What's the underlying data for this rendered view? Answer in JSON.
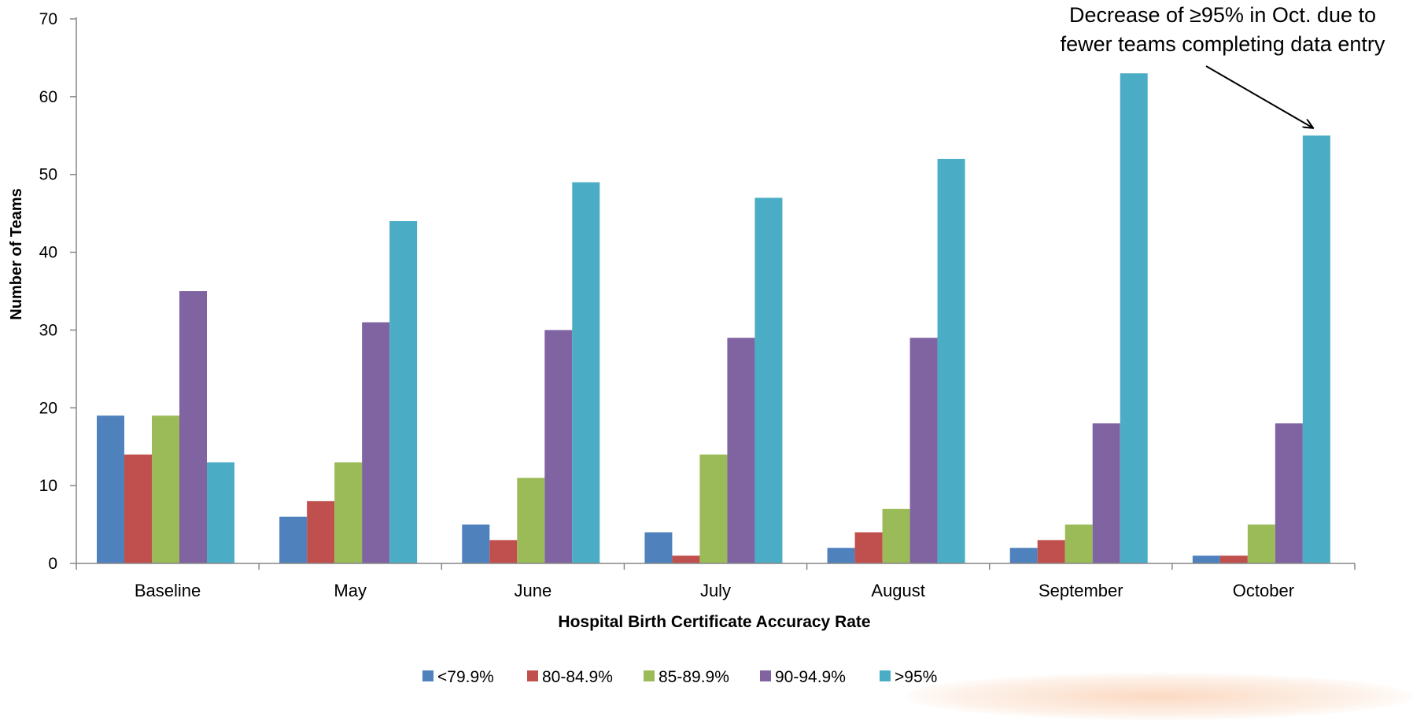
{
  "chart_data": {
    "type": "bar",
    "title": "",
    "xlabel": "Hospital Birth Certificate Accuracy Rate",
    "ylabel": "Number of Teams",
    "ylim": [
      0,
      70
    ],
    "yticks": [
      0,
      10,
      20,
      30,
      40,
      50,
      60,
      70
    ],
    "grid": false,
    "legend_position": "bottom",
    "categories": [
      "Baseline",
      "May",
      "June",
      "July",
      "August",
      "September",
      "October"
    ],
    "series": [
      {
        "name": "<79.9%",
        "color": "#4F81BD",
        "values": [
          19,
          6,
          5,
          4,
          2,
          2,
          1
        ]
      },
      {
        "name": "80-84.9%",
        "color": "#C0504D",
        "values": [
          14,
          8,
          3,
          1,
          4,
          3,
          1
        ]
      },
      {
        "name": "85-89.9%",
        "color": "#9BBB59",
        "values": [
          19,
          13,
          11,
          14,
          7,
          5,
          5
        ]
      },
      {
        "name": "90-94.9%",
        "color": "#8064A2",
        "values": [
          35,
          31,
          30,
          29,
          29,
          18,
          18
        ]
      },
      {
        "name": ">95%",
        "color": "#4BACC6",
        "values": [
          13,
          44,
          49,
          47,
          52,
          63,
          55
        ]
      }
    ],
    "annotations": [
      {
        "lines": [
          "Decrease of ≥95% in Oct. due to",
          "fewer teams completing data entry"
        ],
        "target_category": "October",
        "target_series": ">95%"
      }
    ]
  }
}
